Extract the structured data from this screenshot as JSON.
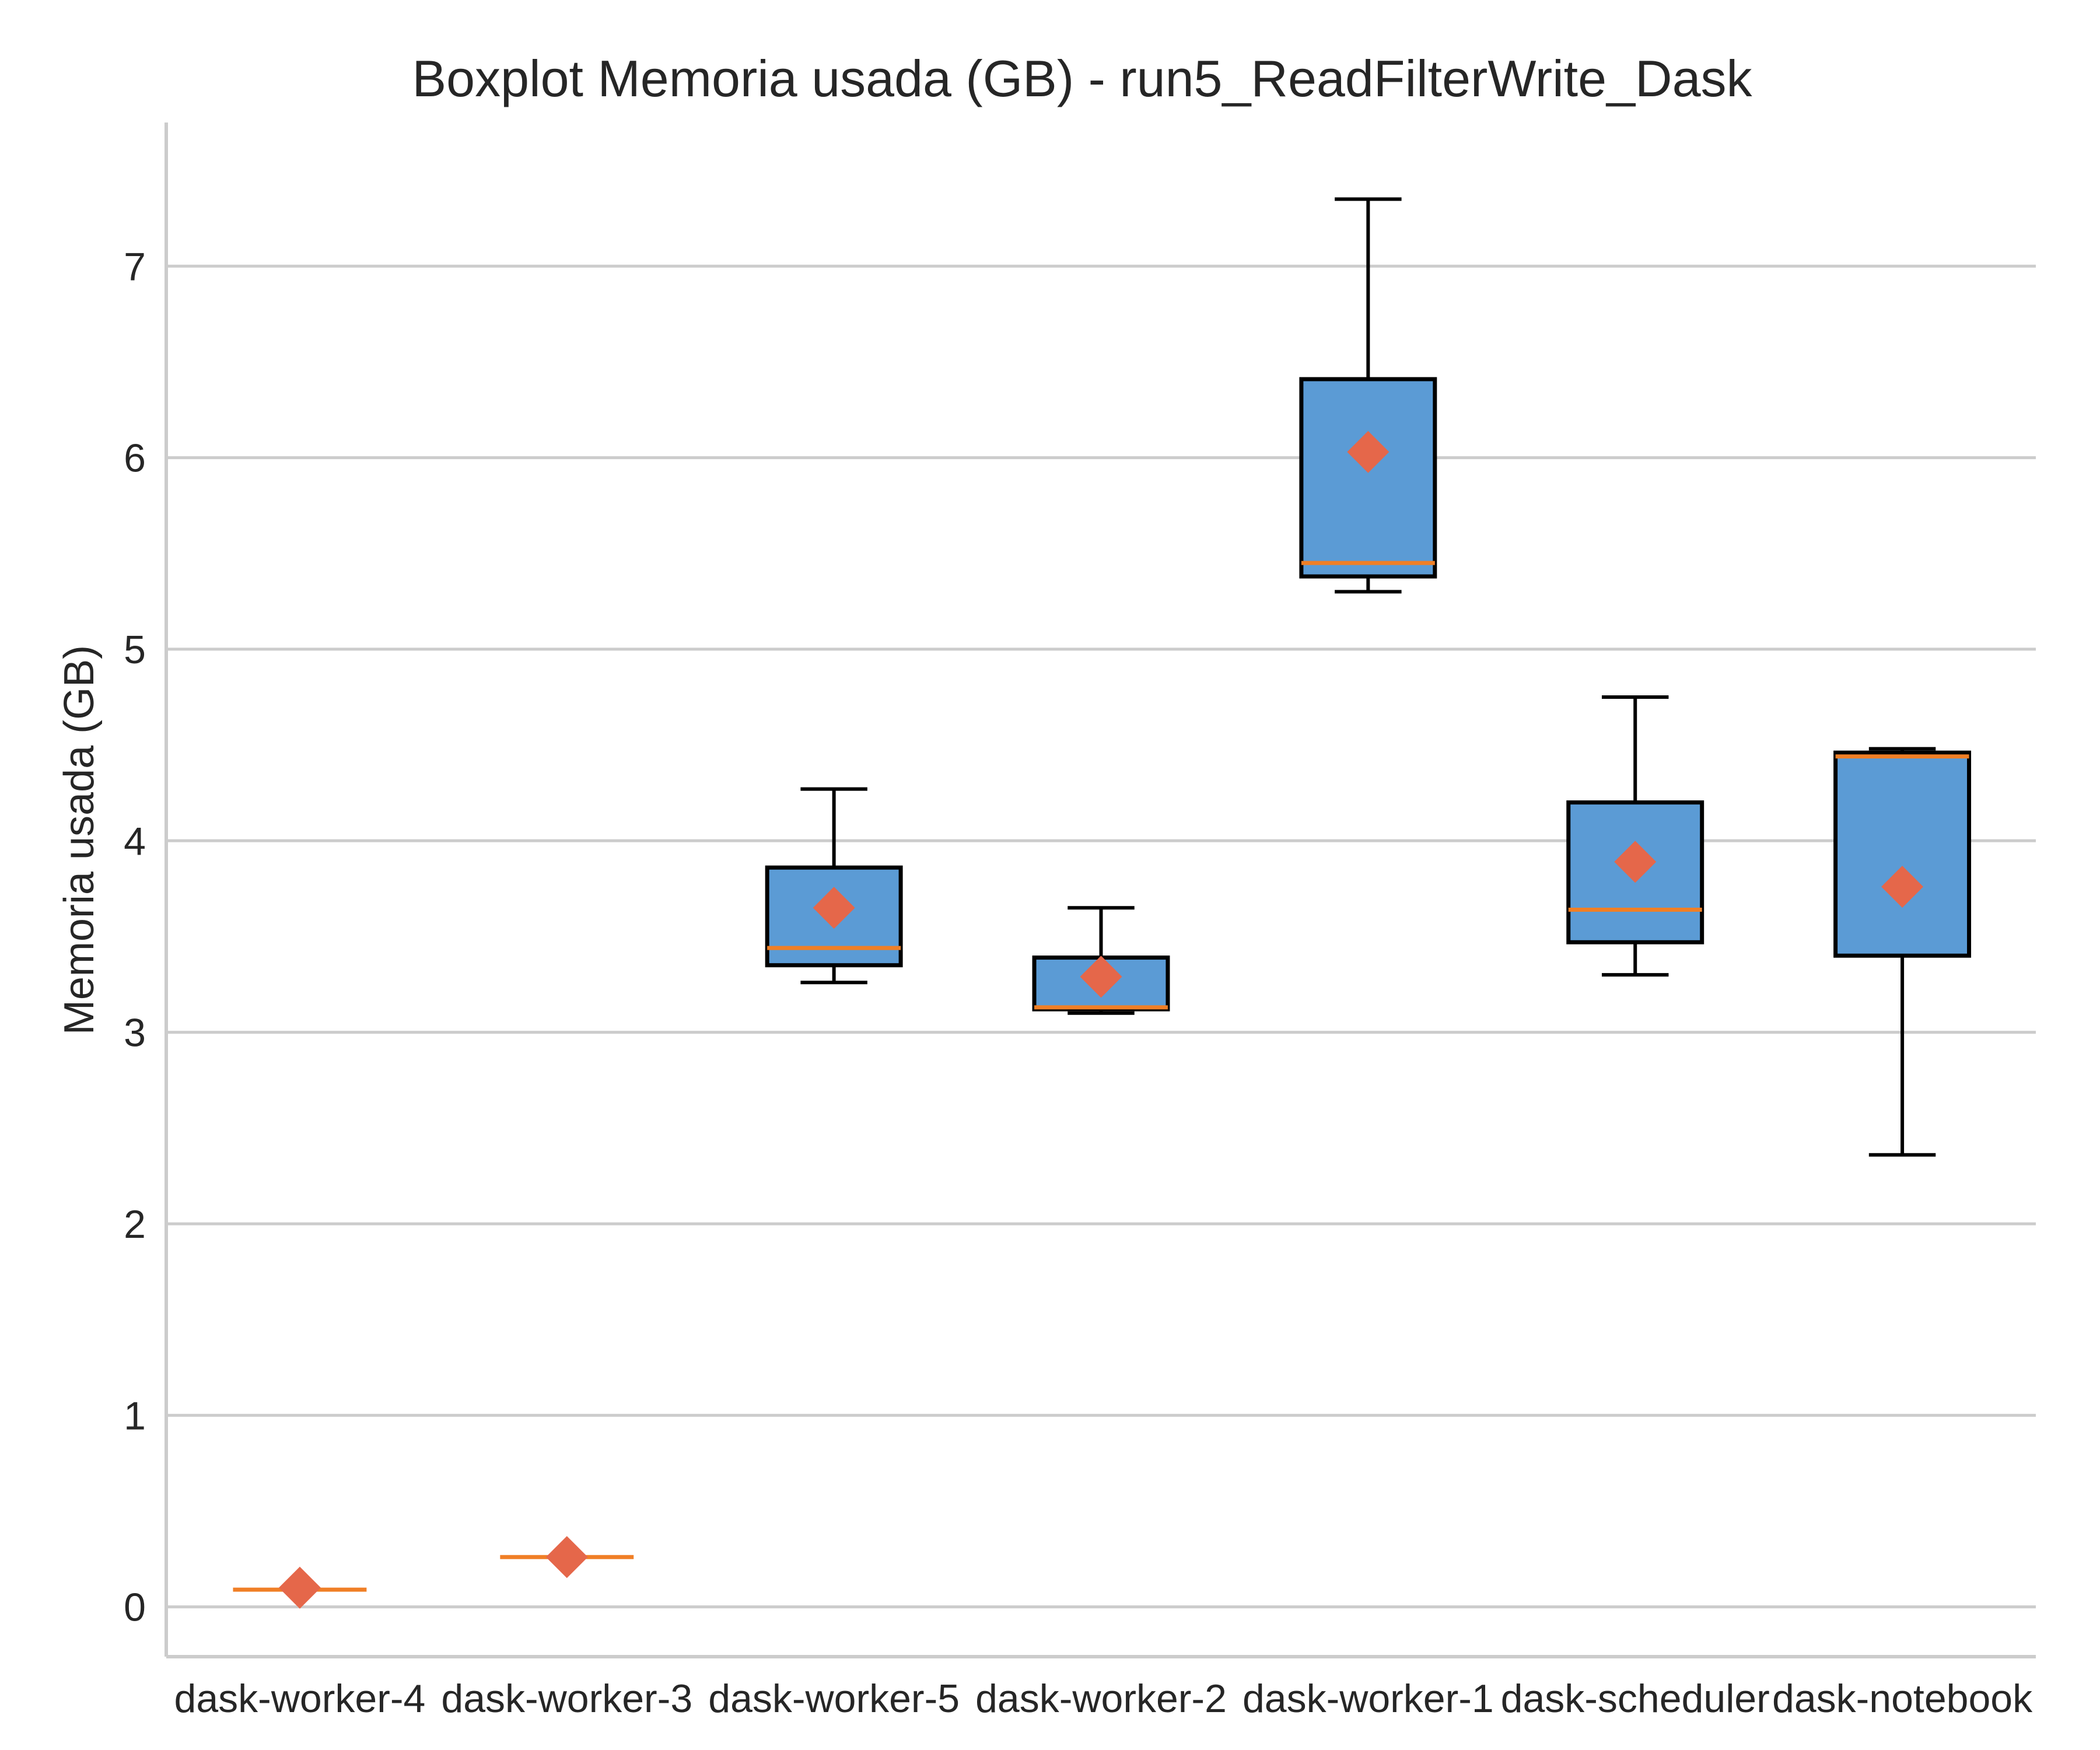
{
  "colors": {
    "box_fill": "#5b9bd5",
    "box_edge": "#000000",
    "median": "#f07f26",
    "mean_marker": "#e5674a",
    "grid": "#cccccc",
    "text": "#262626"
  },
  "chart_data": {
    "type": "boxplot",
    "title": "Boxplot Memoria usada (GB) - run5_ReadFilterWrite_Dask",
    "xlabel": "",
    "ylabel": "Memoria usada (GB)",
    "ylim": [
      -0.26,
      7.75
    ],
    "yticks": [
      0,
      1,
      2,
      3,
      4,
      5,
      6,
      7
    ],
    "grid": "horizontal",
    "categories": [
      "dask-worker-4",
      "dask-worker-3",
      "dask-worker-5",
      "dask-worker-2",
      "dask-worker-1",
      "dask-scheduler",
      "dask-notebook"
    ],
    "series": [
      {
        "boxes": [
          {
            "whisker_low": 0.09,
            "q1": 0.09,
            "median": 0.09,
            "q3": 0.09,
            "whisker_high": 0.09,
            "mean": 0.1
          },
          {
            "whisker_low": 0.26,
            "q1": 0.26,
            "median": 0.26,
            "q3": 0.26,
            "whisker_high": 0.26,
            "mean": 0.26
          },
          {
            "whisker_low": 3.26,
            "q1": 3.35,
            "median": 3.44,
            "q3": 3.86,
            "whisker_high": 4.27,
            "mean": 3.65
          },
          {
            "whisker_low": 3.1,
            "q1": 3.12,
            "median": 3.13,
            "q3": 3.39,
            "whisker_high": 3.65,
            "mean": 3.29
          },
          {
            "whisker_low": 5.3,
            "q1": 5.38,
            "median": 5.45,
            "q3": 6.41,
            "whisker_high": 7.35,
            "mean": 6.03
          },
          {
            "whisker_low": 3.3,
            "q1": 3.47,
            "median": 3.64,
            "q3": 4.2,
            "whisker_high": 4.75,
            "mean": 3.89
          },
          {
            "whisker_low": 2.36,
            "q1": 3.4,
            "median": 4.44,
            "q3": 4.46,
            "whisker_high": 4.48,
            "mean": 3.76
          }
        ]
      }
    ]
  }
}
